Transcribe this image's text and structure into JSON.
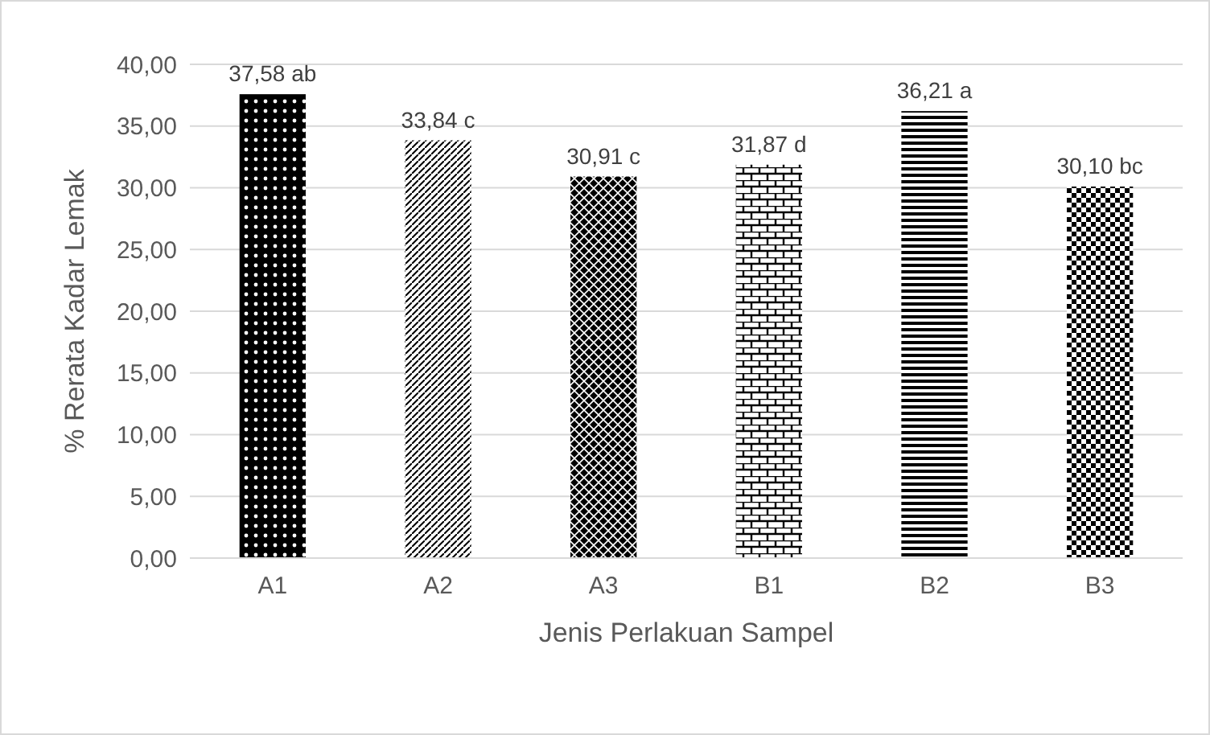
{
  "chart_data": {
    "type": "bar",
    "xlabel": "Jenis Perlakuan Sampel",
    "ylabel": "% Rerata Kadar Lemak",
    "categories": [
      "A1",
      "A2",
      "A3",
      "B1",
      "B2",
      "B3"
    ],
    "values": [
      37.58,
      33.84,
      30.91,
      31.87,
      36.21,
      30.1
    ],
    "value_labels": [
      "37,58 ab",
      "33,84 c",
      "30,91 c",
      "31,87 d",
      "36,21 a",
      "30,10 bc"
    ],
    "color": "#000000",
    "ylim": [
      0,
      40
    ],
    "yticks": [
      {
        "value": 0,
        "label": "0,00"
      },
      {
        "value": 5,
        "label": "5,00"
      },
      {
        "value": 10,
        "label": "10,00"
      },
      {
        "value": 15,
        "label": "15,00"
      },
      {
        "value": 20,
        "label": "20,00"
      },
      {
        "value": 25,
        "label": "25,00"
      },
      {
        "value": 30,
        "label": "30,00"
      },
      {
        "value": 35,
        "label": "35,00"
      },
      {
        "value": 40,
        "label": "40,00"
      }
    ],
    "grid": "y"
  }
}
